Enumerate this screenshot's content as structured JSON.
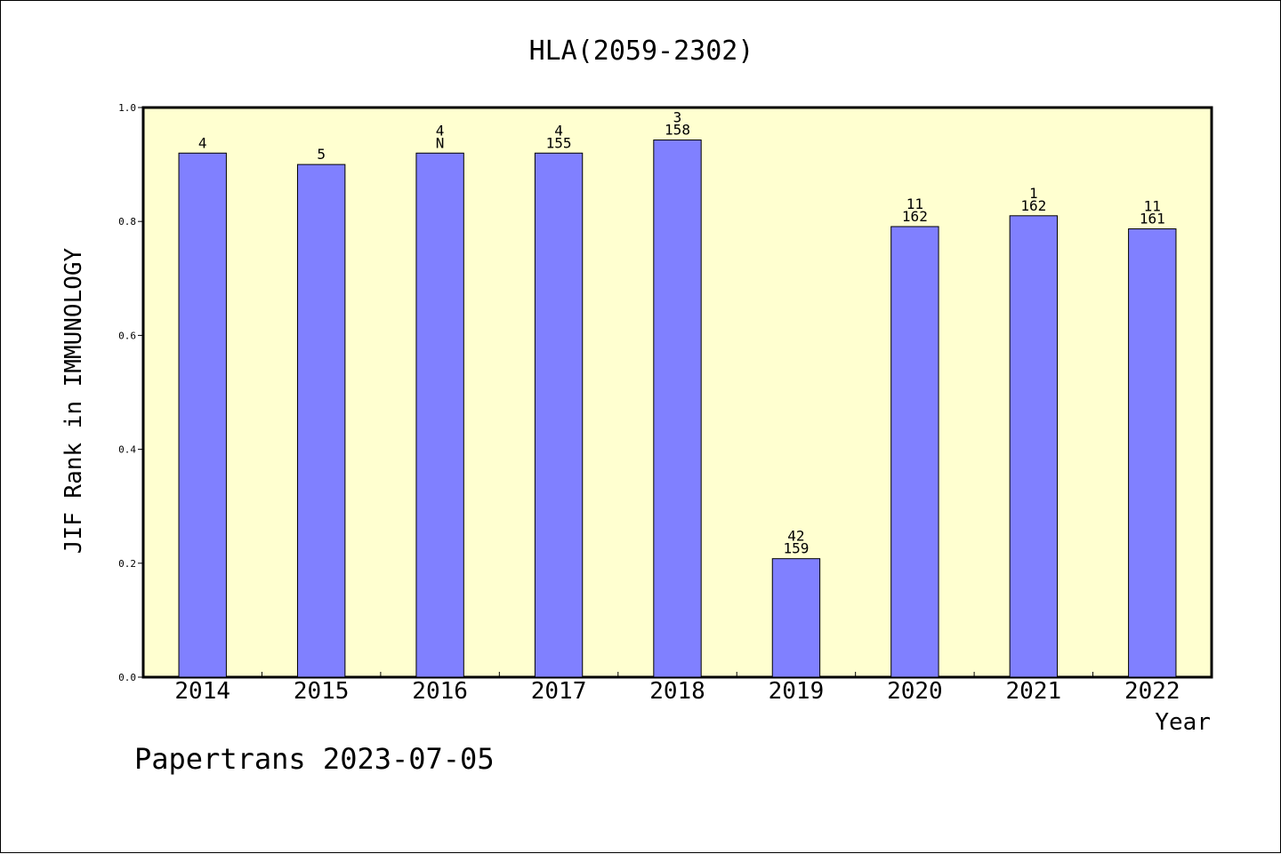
{
  "chart_data": {
    "type": "bar",
    "title": "HLA(2059-2302)",
    "xlabel": "Year",
    "ylabel": "JIF Rank in IMMUNOLOGY",
    "categories": [
      "2014",
      "2015",
      "2016",
      "2017",
      "2018",
      "2019",
      "2020",
      "2021",
      "2022"
    ],
    "values": [
      0.92,
      0.9,
      0.92,
      0.92,
      0.943,
      0.208,
      0.791,
      0.81,
      0.787
    ],
    "bar_labels": [
      [
        "4"
      ],
      [
        "5"
      ],
      [
        "4",
        "N"
      ],
      [
        "4",
        "155"
      ],
      [
        "3",
        "158"
      ],
      [
        "42",
        "159"
      ],
      [
        "11",
        "162"
      ],
      [
        "1",
        "162"
      ],
      [
        "11",
        "161"
      ]
    ],
    "ylim": [
      0,
      1.0
    ],
    "yticks": [
      "0.0",
      "0.2",
      "0.4",
      "0.6",
      "0.8",
      "1.0"
    ],
    "grid": false,
    "colors": {
      "bar": "#8080ff",
      "plot_background": "#ffffd0",
      "axis": "#000000"
    }
  },
  "footer": {
    "credit": "Papertrans 2023-07-05"
  }
}
